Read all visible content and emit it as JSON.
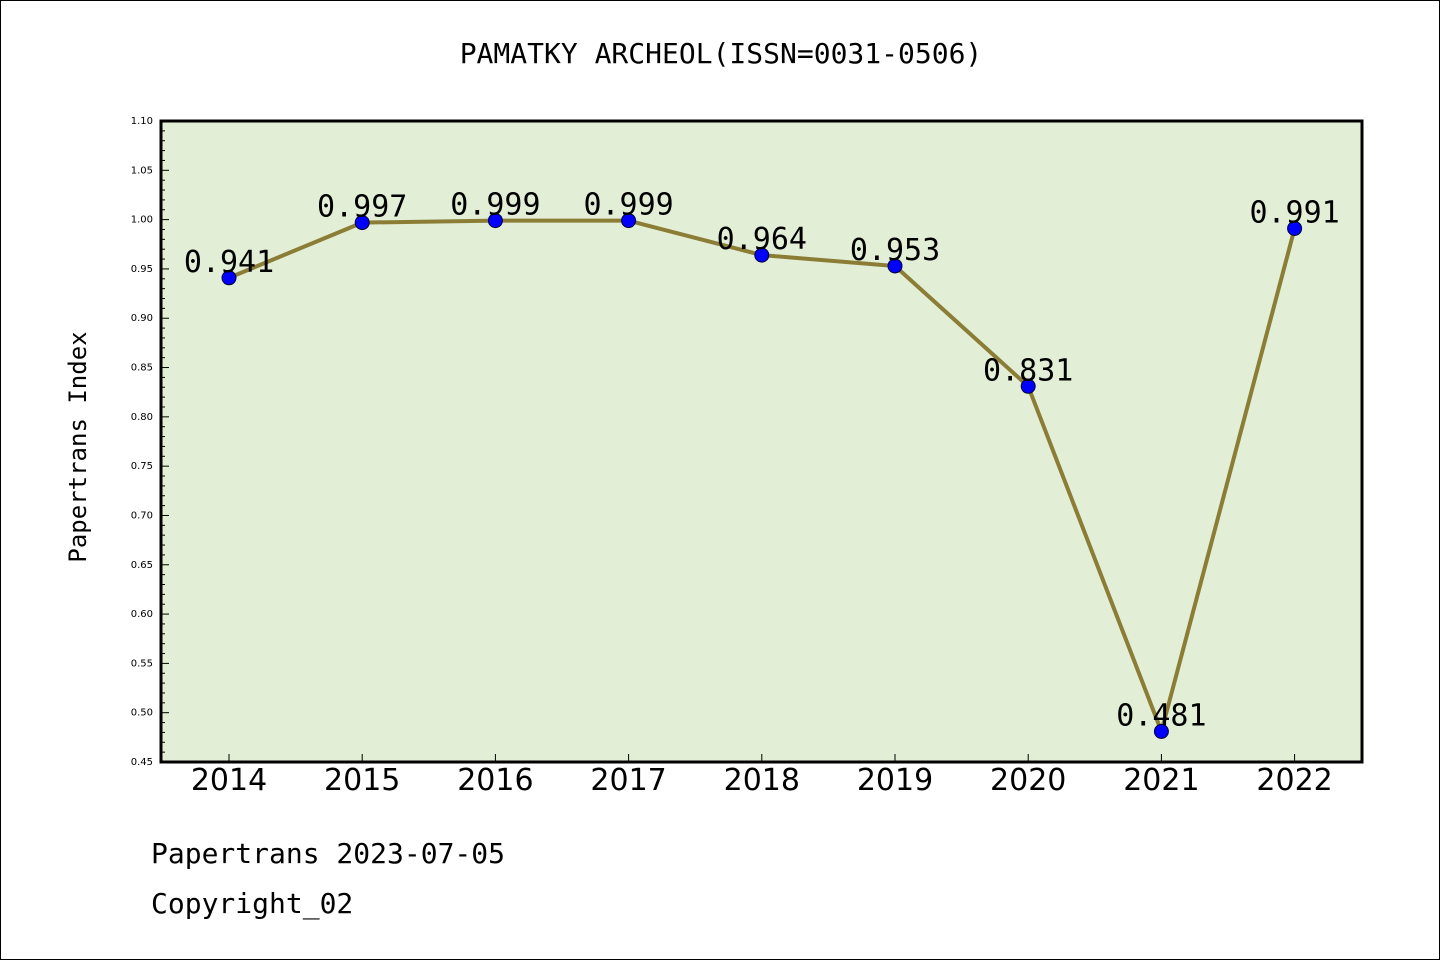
{
  "chart_data": {
    "type": "line",
    "title": "PAMATKY ARCHEOL(ISSN=0031-0506)",
    "ylabel": "Papertrans Index",
    "xlabel": "",
    "categories": [
      "2014",
      "2015",
      "2016",
      "2017",
      "2018",
      "2019",
      "2020",
      "2021",
      "2022"
    ],
    "values": [
      0.941,
      0.997,
      0.999,
      0.999,
      0.964,
      0.953,
      0.831,
      0.481,
      0.991
    ],
    "data_labels": [
      "0.941",
      "0.997",
      "0.999",
      "0.999",
      "0.964",
      "0.953",
      "0.831",
      "0.481",
      "0.991"
    ],
    "ylim": [
      0.45,
      1.1
    ],
    "yticks": [
      "0.45",
      "0.50",
      "0.55",
      "0.60",
      "0.65",
      "0.70",
      "0.75",
      "0.80",
      "0.85",
      "0.90",
      "0.95",
      "1.00",
      "1.05",
      "1.10"
    ],
    "grid": false,
    "colors": {
      "plot_background": "#e2efd6",
      "line": "#8b7d35",
      "marker": "#0000ff"
    }
  },
  "footer": {
    "date_text": "Papertrans 2023-07-05",
    "copyright_text": "Copyright_02"
  }
}
